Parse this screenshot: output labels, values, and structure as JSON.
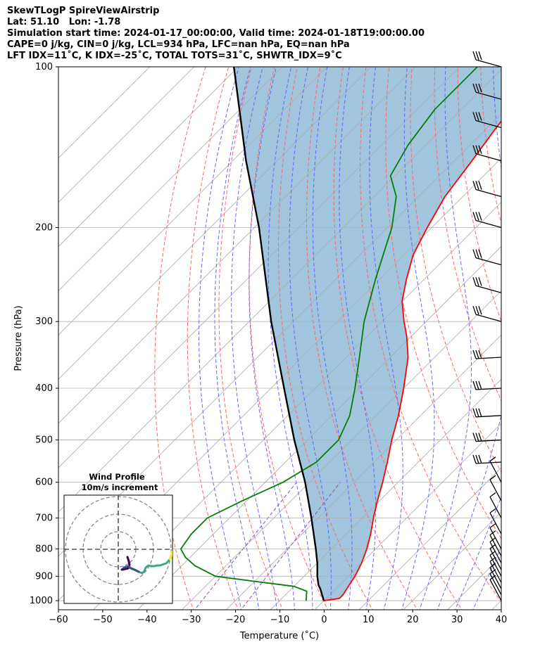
{
  "header": {
    "line1": "SkewTLogP SpireViewAirstrip",
    "line2": "Lat: 51.10   Lon: -1.78",
    "line3": "Simulation start time: 2024-01-17_00:00:00, Valid time: 2024-01-18T19:00:00.00",
    "line4": "CAPE=0 j/kg, CIN=0 j/kg, LCL=934 hPa, LFC=nan hPa, EQ=nan hPa",
    "line5": "LFT IDX=11˚C, K IDX=-25˚C, TOTAL TOTS=31˚C, SHWTR_IDX=9˚C"
  },
  "chart_data": {
    "type": "line",
    "subtype": "skew-t log-p",
    "xlabel": "Temperature (˚C)",
    "ylabel": "Pressure (hPa)",
    "xlim": [
      -60,
      40
    ],
    "ylim": [
      1040,
      100
    ],
    "y_scale": "log",
    "grid": true,
    "x_ticks": [
      -60,
      -50,
      -40,
      -30,
      -20,
      -10,
      0,
      10,
      20,
      30,
      40
    ],
    "x_tick_labels": [
      "−60",
      "−50",
      "−40",
      "−30",
      "−20",
      "−10",
      "0",
      "10",
      "20",
      "30",
      "40"
    ],
    "y_ticks": [
      100,
      200,
      300,
      400,
      500,
      600,
      700,
      800,
      900,
      1000
    ],
    "colors": {
      "temperature": "#ff0000",
      "dewpoint": "#008000",
      "parcel": "#000000",
      "cape_cin_fill": "#a3c6df",
      "dry_adiabats": "#ff6666",
      "moist_adiabats": "#6666ff",
      "mixing_ratio": "#9944cc",
      "isotherms": "#aaaaaa"
    },
    "series": [
      {
        "role": "temperature",
        "points": [
          [
            1000,
            0
          ],
          [
            990,
            3
          ],
          [
            975,
            3
          ],
          [
            950,
            2.5
          ],
          [
            925,
            2
          ],
          [
            900,
            1.5
          ],
          [
            850,
            0
          ],
          [
            800,
            -2
          ],
          [
            750,
            -4.5
          ],
          [
            700,
            -7.5
          ],
          [
            650,
            -10.5
          ],
          [
            600,
            -13.5
          ],
          [
            550,
            -17
          ],
          [
            500,
            -21
          ],
          [
            450,
            -25
          ],
          [
            400,
            -30
          ],
          [
            350,
            -36
          ],
          [
            320,
            -41
          ],
          [
            300,
            -45
          ],
          [
            275,
            -50
          ],
          [
            250,
            -54
          ],
          [
            225,
            -58
          ],
          [
            200,
            -61
          ],
          [
            175,
            -64
          ],
          [
            150,
            -66
          ],
          [
            130,
            -68
          ],
          [
            100,
            -71
          ]
        ]
      },
      {
        "role": "dewpoint",
        "points": [
          [
            1000,
            -4
          ],
          [
            980,
            -5
          ],
          [
            960,
            -6
          ],
          [
            940,
            -10
          ],
          [
            920,
            -20
          ],
          [
            900,
            -30
          ],
          [
            860,
            -37
          ],
          [
            830,
            -41
          ],
          [
            800,
            -44
          ],
          [
            750,
            -45
          ],
          [
            700,
            -45
          ],
          [
            650,
            -41
          ],
          [
            600,
            -36
          ],
          [
            550,
            -33
          ],
          [
            500,
            -33
          ],
          [
            450,
            -36
          ],
          [
            400,
            -41
          ],
          [
            350,
            -47
          ],
          [
            300,
            -54
          ],
          [
            250,
            -61
          ],
          [
            200,
            -69
          ],
          [
            175,
            -75
          ],
          [
            160,
            -81
          ],
          [
            140,
            -84
          ],
          [
            120,
            -86
          ],
          [
            100,
            -86
          ]
        ]
      },
      {
        "role": "parcel",
        "points": [
          [
            1000,
            0
          ],
          [
            950,
            -3.5
          ],
          [
            934,
            -4.8
          ],
          [
            900,
            -7
          ],
          [
            850,
            -10
          ],
          [
            800,
            -13.5
          ],
          [
            700,
            -21.5
          ],
          [
            600,
            -31
          ],
          [
            500,
            -43
          ],
          [
            400,
            -57
          ],
          [
            300,
            -75
          ],
          [
            200,
            -99
          ],
          [
            150,
            -117
          ],
          [
            100,
            -141
          ]
        ]
      }
    ],
    "wind_barbs": [
      {
        "p": 1000
      },
      {
        "p": 975
      },
      {
        "p": 950
      },
      {
        "p": 925
      },
      {
        "p": 900
      },
      {
        "p": 875
      },
      {
        "p": 850
      },
      {
        "p": 825
      },
      {
        "p": 800
      },
      {
        "p": 750
      },
      {
        "p": 700
      },
      {
        "p": 650
      },
      {
        "p": 600
      },
      {
        "p": 550
      },
      {
        "p": 500
      },
      {
        "p": 450
      },
      {
        "p": 400
      },
      {
        "p": 350
      },
      {
        "p": 300
      },
      {
        "p": 265
      },
      {
        "p": 235
      },
      {
        "p": 200
      },
      {
        "p": 175
      },
      {
        "p": 150
      },
      {
        "p": 130
      },
      {
        "p": 115
      },
      {
        "p": 100
      }
    ]
  },
  "inset": {
    "title": "Wind Profile",
    "subtitle": "10m/s increment"
  }
}
